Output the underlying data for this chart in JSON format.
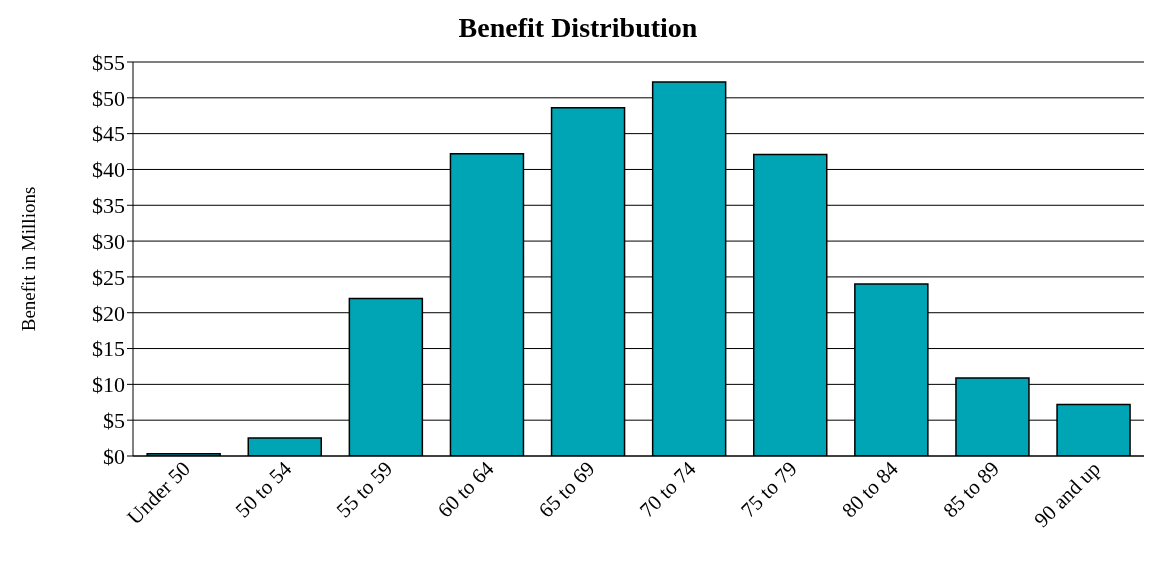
{
  "chart_data": {
    "type": "bar",
    "title": "Benefit Distribution",
    "ylabel": "Benefit in Millions",
    "categories": [
      "Under 50",
      "50 to 54",
      "55 to 59",
      "60 to 64",
      "65 to 69",
      "70 to 74",
      "75 to 79",
      "80 to 84",
      "85 to 89",
      "90 and up"
    ],
    "values": [
      0.3,
      2.5,
      22.0,
      42.2,
      48.6,
      52.2,
      42.1,
      24.0,
      10.9,
      7.2
    ],
    "color": "#00a5b5",
    "ylim": [
      0,
      55
    ],
    "yticks": [
      {
        "value": 0,
        "label": "$0"
      },
      {
        "value": 5,
        "label": "$5"
      },
      {
        "value": 10,
        "label": "$10"
      },
      {
        "value": 15,
        "label": "$15"
      },
      {
        "value": 20,
        "label": "$20"
      },
      {
        "value": 25,
        "label": "$25"
      },
      {
        "value": 30,
        "label": "$30"
      },
      {
        "value": 35,
        "label": "$35"
      },
      {
        "value": 40,
        "label": "$40"
      },
      {
        "value": 45,
        "label": "$45"
      },
      {
        "value": 50,
        "label": "$50"
      },
      {
        "value": 55,
        "label": "$55"
      }
    ],
    "grid": "y",
    "legend": false
  }
}
